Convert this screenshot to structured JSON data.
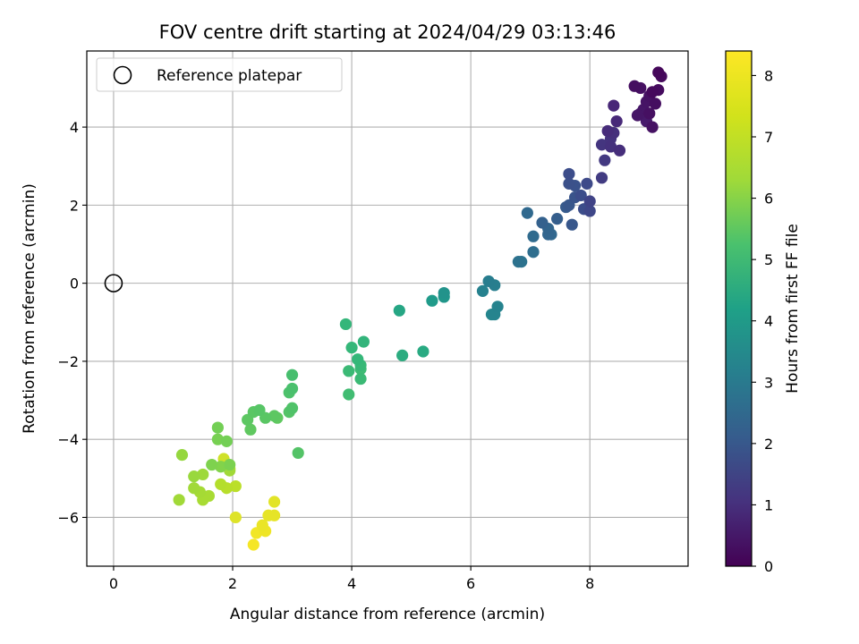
{
  "chart_data": {
    "type": "scatter",
    "title": "FOV centre drift starting at 2024/04/29 03:13:46",
    "xlabel": "Angular distance from reference (arcmin)",
    "ylabel": "Rotation from reference (arcmin)",
    "xlim": [
      -0.45,
      9.65
    ],
    "ylim": [
      -7.25,
      5.95
    ],
    "xticks": [
      0,
      2,
      4,
      6,
      8
    ],
    "yticks": [
      -6,
      -4,
      -2,
      0,
      2,
      4
    ],
    "grid": true,
    "legend": {
      "position": "top-left",
      "entries": [
        "Reference platepar"
      ]
    },
    "colorbar": {
      "label": "Hours from first FF file",
      "colormap": "viridis",
      "range": [
        0,
        8.4
      ],
      "ticks": [
        0,
        1,
        2,
        3,
        4,
        5,
        6,
        7,
        8
      ]
    },
    "reference_point": {
      "x": 0,
      "y": 0
    },
    "points": [
      {
        "x": 9.15,
        "y": 5.4,
        "c": 0.15
      },
      {
        "x": 9.2,
        "y": 5.3,
        "c": 0.2
      },
      {
        "x": 8.75,
        "y": 5.05,
        "c": 0.3
      },
      {
        "x": 8.85,
        "y": 5.0,
        "c": 0.35
      },
      {
        "x": 9.15,
        "y": 4.95,
        "c": 0.25
      },
      {
        "x": 9.0,
        "y": 4.8,
        "c": 0.4
      },
      {
        "x": 9.05,
        "y": 4.9,
        "c": 0.2
      },
      {
        "x": 8.95,
        "y": 4.65,
        "c": 0.45
      },
      {
        "x": 9.1,
        "y": 4.6,
        "c": 0.3
      },
      {
        "x": 8.9,
        "y": 4.45,
        "c": 0.5
      },
      {
        "x": 8.85,
        "y": 4.35,
        "c": 0.55
      },
      {
        "x": 9.0,
        "y": 4.35,
        "c": 0.35
      },
      {
        "x": 8.8,
        "y": 4.3,
        "c": 0.5
      },
      {
        "x": 8.95,
        "y": 4.15,
        "c": 0.6
      },
      {
        "x": 9.05,
        "y": 4.0,
        "c": 0.4
      },
      {
        "x": 8.4,
        "y": 4.55,
        "c": 0.9
      },
      {
        "x": 8.45,
        "y": 4.15,
        "c": 0.95
      },
      {
        "x": 8.3,
        "y": 3.9,
        "c": 1.05
      },
      {
        "x": 8.4,
        "y": 3.85,
        "c": 1.15
      },
      {
        "x": 8.35,
        "y": 3.7,
        "c": 1.25
      },
      {
        "x": 8.2,
        "y": 3.55,
        "c": 1.3
      },
      {
        "x": 8.35,
        "y": 3.5,
        "c": 1.2
      },
      {
        "x": 8.5,
        "y": 3.4,
        "c": 1.1
      },
      {
        "x": 8.25,
        "y": 3.15,
        "c": 1.4
      },
      {
        "x": 8.2,
        "y": 2.7,
        "c": 1.5
      },
      {
        "x": 7.65,
        "y": 2.8,
        "c": 2.0
      },
      {
        "x": 7.65,
        "y": 2.55,
        "c": 2.1
      },
      {
        "x": 7.75,
        "y": 2.5,
        "c": 2.15
      },
      {
        "x": 7.95,
        "y": 2.55,
        "c": 1.9
      },
      {
        "x": 7.75,
        "y": 2.2,
        "c": 2.2
      },
      {
        "x": 7.85,
        "y": 2.25,
        "c": 2.0
      },
      {
        "x": 8.0,
        "y": 2.1,
        "c": 1.7
      },
      {
        "x": 7.65,
        "y": 2.0,
        "c": 2.3
      },
      {
        "x": 7.6,
        "y": 1.95,
        "c": 2.4
      },
      {
        "x": 7.9,
        "y": 1.9,
        "c": 2.0
      },
      {
        "x": 8.0,
        "y": 1.85,
        "c": 1.8
      },
      {
        "x": 7.45,
        "y": 1.65,
        "c": 2.5
      },
      {
        "x": 7.7,
        "y": 1.5,
        "c": 2.3
      },
      {
        "x": 7.2,
        "y": 1.55,
        "c": 2.6
      },
      {
        "x": 7.3,
        "y": 1.4,
        "c": 2.7
      },
      {
        "x": 7.3,
        "y": 1.25,
        "c": 2.75
      },
      {
        "x": 7.35,
        "y": 1.25,
        "c": 2.8
      },
      {
        "x": 6.95,
        "y": 1.8,
        "c": 2.85
      },
      {
        "x": 7.05,
        "y": 1.2,
        "c": 2.9
      },
      {
        "x": 7.05,
        "y": 0.8,
        "c": 3.0
      },
      {
        "x": 6.8,
        "y": 0.55,
        "c": 3.15
      },
      {
        "x": 6.85,
        "y": 0.55,
        "c": 3.2
      },
      {
        "x": 6.3,
        "y": 0.05,
        "c": 3.55
      },
      {
        "x": 6.4,
        "y": -0.05,
        "c": 3.6
      },
      {
        "x": 6.2,
        "y": -0.2,
        "c": 3.7
      },
      {
        "x": 6.45,
        "y": -0.6,
        "c": 3.75
      },
      {
        "x": 6.35,
        "y": -0.8,
        "c": 3.85
      },
      {
        "x": 6.4,
        "y": -0.8,
        "c": 3.8
      },
      {
        "x": 5.55,
        "y": -0.25,
        "c": 4.3
      },
      {
        "x": 5.55,
        "y": -0.35,
        "c": 4.4
      },
      {
        "x": 5.35,
        "y": -0.45,
        "c": 4.55
      },
      {
        "x": 4.8,
        "y": -0.7,
        "c": 4.95
      },
      {
        "x": 3.9,
        "y": -1.05,
        "c": 5.55
      },
      {
        "x": 4.0,
        "y": -1.65,
        "c": 5.6
      },
      {
        "x": 4.2,
        "y": -1.5,
        "c": 5.5
      },
      {
        "x": 4.85,
        "y": -1.85,
        "c": 5.2
      },
      {
        "x": 5.2,
        "y": -1.75,
        "c": 5.1
      },
      {
        "x": 4.1,
        "y": -1.95,
        "c": 5.6
      },
      {
        "x": 4.15,
        "y": -2.1,
        "c": 5.65
      },
      {
        "x": 3.95,
        "y": -2.25,
        "c": 5.7
      },
      {
        "x": 4.15,
        "y": -2.2,
        "c": 5.75
      },
      {
        "x": 4.15,
        "y": -2.45,
        "c": 5.7
      },
      {
        "x": 3.95,
        "y": -2.85,
        "c": 5.8
      },
      {
        "x": 3.0,
        "y": -2.35,
        "c": 5.9
      },
      {
        "x": 3.0,
        "y": -2.7,
        "c": 5.95
      },
      {
        "x": 2.95,
        "y": -2.8,
        "c": 6.0
      },
      {
        "x": 3.0,
        "y": -3.2,
        "c": 6.05
      },
      {
        "x": 2.95,
        "y": -3.3,
        "c": 6.1
      },
      {
        "x": 2.45,
        "y": -3.25,
        "c": 6.15
      },
      {
        "x": 2.35,
        "y": -3.3,
        "c": 6.2
      },
      {
        "x": 2.25,
        "y": -3.5,
        "c": 6.25
      },
      {
        "x": 2.55,
        "y": -3.45,
        "c": 6.2
      },
      {
        "x": 2.7,
        "y": -3.4,
        "c": 6.25
      },
      {
        "x": 2.75,
        "y": -3.45,
        "c": 6.3
      },
      {
        "x": 2.3,
        "y": -3.75,
        "c": 6.3
      },
      {
        "x": 3.1,
        "y": -4.35,
        "c": 6.1
      },
      {
        "x": 1.75,
        "y": -3.7,
        "c": 6.6
      },
      {
        "x": 1.75,
        "y": -4.0,
        "c": 6.65
      },
      {
        "x": 1.9,
        "y": -4.05,
        "c": 6.6
      },
      {
        "x": 1.65,
        "y": -4.65,
        "c": 6.75
      },
      {
        "x": 1.8,
        "y": -4.7,
        "c": 6.8
      },
      {
        "x": 1.95,
        "y": -4.65,
        "c": 6.7
      },
      {
        "x": 1.15,
        "y": -4.4,
        "c": 7.05
      },
      {
        "x": 1.35,
        "y": -4.95,
        "c": 7.1
      },
      {
        "x": 1.5,
        "y": -4.9,
        "c": 7.15
      },
      {
        "x": 1.95,
        "y": -4.8,
        "c": 7.2
      },
      {
        "x": 1.35,
        "y": -5.25,
        "c": 7.2
      },
      {
        "x": 1.45,
        "y": -5.35,
        "c": 7.25
      },
      {
        "x": 1.6,
        "y": -5.45,
        "c": 7.3
      },
      {
        "x": 1.5,
        "y": -5.55,
        "c": 7.3
      },
      {
        "x": 1.1,
        "y": -5.55,
        "c": 7.2
      },
      {
        "x": 1.8,
        "y": -5.15,
        "c": 7.45
      },
      {
        "x": 1.9,
        "y": -5.25,
        "c": 7.5
      },
      {
        "x": 2.05,
        "y": -5.2,
        "c": 7.55
      },
      {
        "x": 1.85,
        "y": -4.5,
        "c": 7.8
      },
      {
        "x": 1.95,
        "y": -4.75,
        "c": 7.85
      },
      {
        "x": 2.05,
        "y": -6.0,
        "c": 8.0
      },
      {
        "x": 2.7,
        "y": -5.6,
        "c": 8.05
      },
      {
        "x": 2.6,
        "y": -5.95,
        "c": 8.1
      },
      {
        "x": 2.7,
        "y": -5.95,
        "c": 8.1
      },
      {
        "x": 2.5,
        "y": -6.2,
        "c": 8.15
      },
      {
        "x": 2.55,
        "y": -6.35,
        "c": 8.2
      },
      {
        "x": 2.4,
        "y": -6.4,
        "c": 8.25
      },
      {
        "x": 2.35,
        "y": -6.7,
        "c": 8.3
      }
    ]
  }
}
